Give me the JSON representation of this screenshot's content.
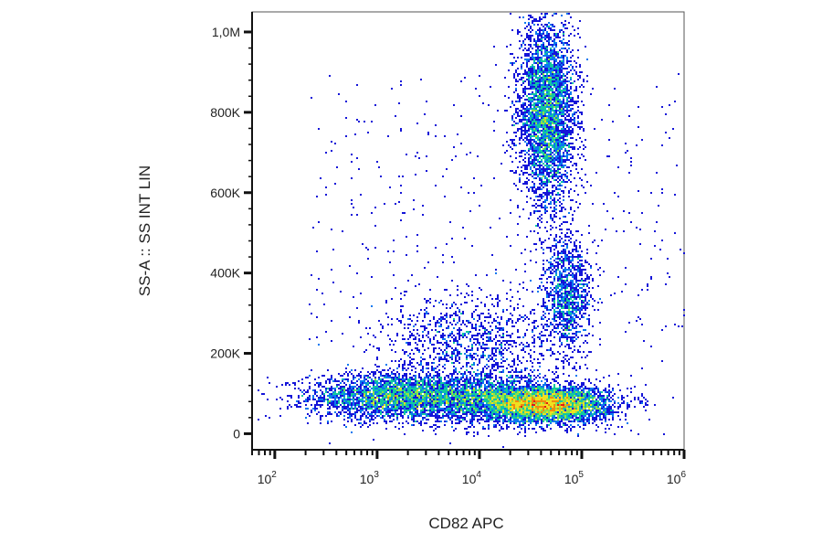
{
  "chart_data": {
    "type": "scatter",
    "style": "density-colored",
    "xlabel": "CD82 APC",
    "ylabel": "SS-A :: SS INT LIN",
    "x_scale": "log",
    "xlim": [
      60,
      1000000
    ],
    "ylim": [
      -40000,
      1050000
    ],
    "grid": false,
    "legend": "none",
    "x_ticks": [
      {
        "value": 100,
        "base": "10",
        "exp": "2"
      },
      {
        "value": 1000,
        "base": "10",
        "exp": "3"
      },
      {
        "value": 10000,
        "base": "10",
        "exp": "4"
      },
      {
        "value": 100000,
        "base": "10",
        "exp": "5"
      },
      {
        "value": 1000000,
        "base": "10",
        "exp": "6"
      }
    ],
    "y_ticks": [
      {
        "value": 0,
        "label": "0"
      },
      {
        "value": 200000,
        "label": "200K"
      },
      {
        "value": 400000,
        "label": "400K"
      },
      {
        "value": 600000,
        "label": "600K"
      },
      {
        "value": 800000,
        "label": "800K"
      },
      {
        "value": 1000000,
        "label": "1,0M"
      }
    ],
    "populations": [
      {
        "x_center": 1500,
        "y_center": 95000,
        "x_spread_decades": 0.42,
        "y_spread": 28000,
        "weight": 0.2
      },
      {
        "x_center": 45000,
        "y_center": 75000,
        "x_spread_decades": 0.3,
        "y_spread": 22000,
        "weight": 0.3
      },
      {
        "x_center": 12000,
        "y_center": 90000,
        "x_spread_decades": 0.35,
        "y_spread": 30000,
        "weight": 0.12
      },
      {
        "x_center": 45000,
        "y_center": 800000,
        "x_spread_decades": 0.14,
        "y_spread": 120000,
        "weight": 0.24
      },
      {
        "x_center": 70000,
        "y_center": 350000,
        "x_spread_decades": 0.12,
        "y_spread": 70000,
        "weight": 0.07
      },
      {
        "x_center": 8000,
        "y_center": 230000,
        "x_spread_decades": 0.45,
        "y_spread": 60000,
        "weight": 0.07
      }
    ],
    "color_scale": [
      "#1414d8",
      "#0a78f0",
      "#12c8a0",
      "#8ee04a",
      "#f0e020",
      "#f08a10",
      "#e01a1a"
    ]
  }
}
